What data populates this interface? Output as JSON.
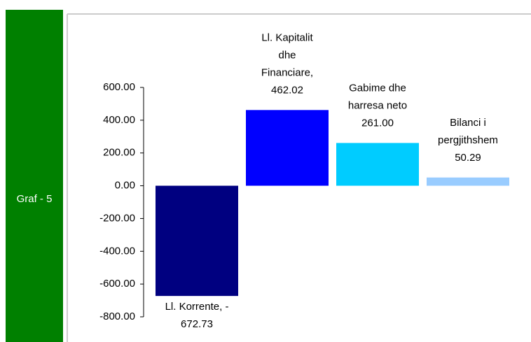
{
  "side_label": "Graf - 5",
  "chart_data": {
    "type": "bar",
    "values": [
      -672.73,
      462.02,
      261.0,
      50.29
    ],
    "value_labels": [
      [
        "Ll. Korrente, -",
        "672.73"
      ],
      [
        "Ll. Kapitalit",
        "dhe",
        "Financiare,",
        "462.02"
      ],
      [
        "Gabime dhe",
        "harresa neto",
        "261.00"
      ],
      [
        "Bilanci i",
        "pergjithshem",
        "50.29"
      ]
    ],
    "colors": [
      "#000080",
      "#0000ff",
      "#00ccff",
      "#99ccff"
    ],
    "ylim": [
      -800,
      600
    ],
    "yticks": [
      {
        "value": -800,
        "label": "-800.00"
      },
      {
        "value": -600,
        "label": "-600.00"
      },
      {
        "value": -400,
        "label": "-400.00"
      },
      {
        "value": -200,
        "label": "-200.00"
      },
      {
        "value": 0,
        "label": "0.00"
      },
      {
        "value": 200,
        "label": "200.00"
      },
      {
        "value": 400,
        "label": "400.00"
      },
      {
        "value": 600,
        "label": "600.00"
      }
    ],
    "grid": false
  }
}
